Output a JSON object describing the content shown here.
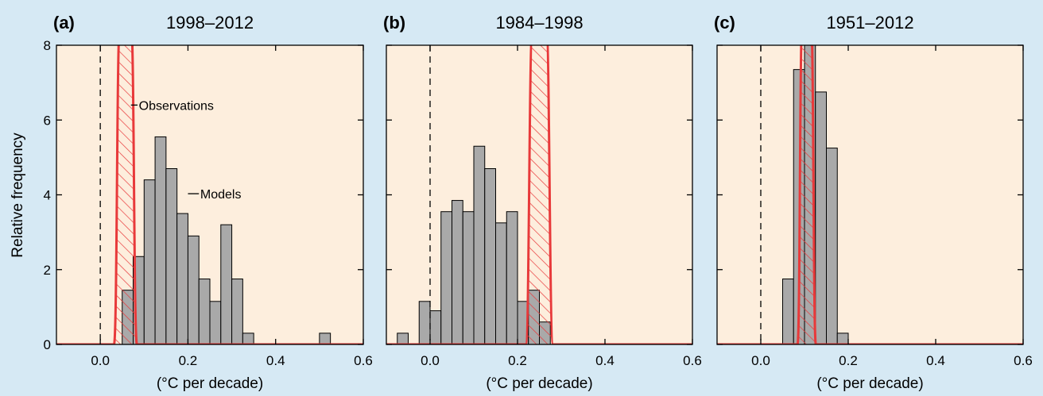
{
  "colors": {
    "background": "#d6e9f4",
    "plot_area": "#fdeedd",
    "bar_fill": "#a9a9a9",
    "observation_line": "#e8393a",
    "axis": "#000000"
  },
  "shared": {
    "ylabel": "Relative frequency",
    "xlabel": "(°C per decade)",
    "x_ticks": [
      "0.0",
      "0.2",
      "0.4",
      "0.6"
    ],
    "y_ticks": [
      "0",
      "2",
      "4",
      "6",
      "8"
    ]
  },
  "chart_data": [
    {
      "type": "bar",
      "panel": "(a)",
      "title": "1998–2012",
      "xlabel": "(°C per decade)",
      "ylabel": "Relative frequency",
      "xlim": [
        -0.1,
        0.6
      ],
      "ylim": [
        0,
        8
      ],
      "bin_width": 0.025,
      "bins": [
        {
          "x0": 0.05,
          "value": 1.45
        },
        {
          "x0": 0.075,
          "value": 2.35
        },
        {
          "x0": 0.1,
          "value": 4.4
        },
        {
          "x0": 0.125,
          "value": 5.55
        },
        {
          "x0": 0.15,
          "value": 4.7
        },
        {
          "x0": 0.175,
          "value": 3.5
        },
        {
          "x0": 0.2,
          "value": 2.9
        },
        {
          "x0": 0.225,
          "value": 1.75
        },
        {
          "x0": 0.25,
          "value": 1.15
        },
        {
          "x0": 0.275,
          "value": 3.2
        },
        {
          "x0": 0.3,
          "value": 1.75
        },
        {
          "x0": 0.325,
          "value": 0.3
        },
        {
          "x0": 0.5,
          "value": 0.3
        }
      ],
      "observation_range": [
        0.045,
        0.07
      ],
      "annotations": {
        "observations": "Observations",
        "models": "Models"
      }
    },
    {
      "type": "bar",
      "panel": "(b)",
      "title": "1984–1998",
      "xlabel": "(°C per decade)",
      "ylabel": "Relative frequency",
      "xlim": [
        -0.1,
        0.6
      ],
      "ylim": [
        0,
        8
      ],
      "bin_width": 0.025,
      "bins": [
        {
          "x0": -0.075,
          "value": 0.3
        },
        {
          "x0": -0.025,
          "value": 1.15
        },
        {
          "x0": 0.0,
          "value": 0.9
        },
        {
          "x0": 0.025,
          "value": 3.55
        },
        {
          "x0": 0.05,
          "value": 3.85
        },
        {
          "x0": 0.075,
          "value": 3.55
        },
        {
          "x0": 0.1,
          "value": 5.3
        },
        {
          "x0": 0.125,
          "value": 4.7
        },
        {
          "x0": 0.15,
          "value": 3.25
        },
        {
          "x0": 0.175,
          "value": 3.55
        },
        {
          "x0": 0.2,
          "value": 1.15
        },
        {
          "x0": 0.225,
          "value": 1.45
        },
        {
          "x0": 0.25,
          "value": 0.6
        }
      ],
      "observation_range": [
        0.235,
        0.265
      ]
    },
    {
      "type": "bar",
      "panel": "(c)",
      "title": "1951–2012",
      "xlabel": "(°C per decade)",
      "ylabel": "Relative frequency",
      "xlim": [
        -0.1,
        0.6
      ],
      "ylim": [
        0,
        8
      ],
      "bin_width": 0.025,
      "bins": [
        {
          "x0": 0.05,
          "value": 1.75
        },
        {
          "x0": 0.075,
          "value": 7.35
        },
        {
          "x0": 0.1,
          "value": 8.2
        },
        {
          "x0": 0.125,
          "value": 6.75
        },
        {
          "x0": 0.15,
          "value": 5.25
        },
        {
          "x0": 0.175,
          "value": 0.3
        }
      ],
      "observation_range": [
        0.095,
        0.115
      ]
    }
  ]
}
